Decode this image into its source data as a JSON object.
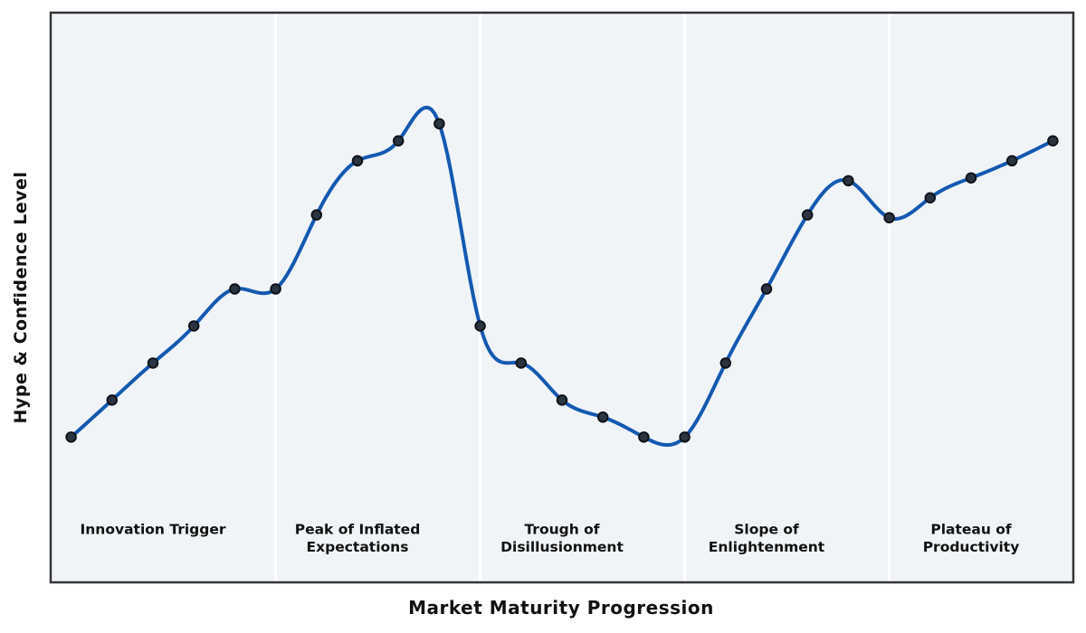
{
  "figure": {
    "xlabel": "Market Maturity Progression",
    "ylabel": "Hype & Confidence Level"
  },
  "chart_data": {
    "type": "line",
    "title": "",
    "xlabel": "Market Maturity Progression",
    "ylabel": "Hype & Confidence Level",
    "x": [
      0,
      1,
      2,
      3,
      4,
      5,
      6,
      7,
      8,
      9,
      10,
      11,
      12,
      13,
      14,
      15,
      16,
      17,
      18,
      19,
      20,
      21,
      22,
      23,
      24
    ],
    "series": [
      {
        "name": "Hype & Confidence",
        "values": [
          25.5,
          32,
          38.5,
          45,
          51.5,
          51.5,
          64.5,
          74,
          77.5,
          80.5,
          45,
          38.5,
          32,
          29,
          25.5,
          25.5,
          38.5,
          51.5,
          64.5,
          70.5,
          64,
          67.5,
          71,
          74,
          77.5
        ]
      }
    ],
    "xlim": [
      -0.5,
      24.5
    ],
    "ylim": [
      0,
      100
    ],
    "grid": false,
    "legend": false,
    "smoothing": "natural-cubic-spline",
    "marker": "circle",
    "axis_ticks": "none",
    "phase_boundaries": [
      5,
      10,
      15,
      20
    ],
    "phase_label_value_y": 9,
    "phases": [
      {
        "label": "Innovation Trigger",
        "center_x": 2
      },
      {
        "label": "Peak of Inflated\nExpectations",
        "center_x": 7
      },
      {
        "label": "Trough of\nDisillusionment",
        "center_x": 12
      },
      {
        "label": "Slope of\nEnlightenment",
        "center_x": 17
      },
      {
        "label": "Plateau of\nProductivity",
        "center_x": 22
      }
    ],
    "colors": {
      "line": "#1459b0",
      "marker_fill": "#2a3441",
      "marker_edge": "#0d1117",
      "plot_background": "#f0f4f7",
      "separator": "#ffffff",
      "border": "#333338",
      "text": "#111111"
    }
  }
}
